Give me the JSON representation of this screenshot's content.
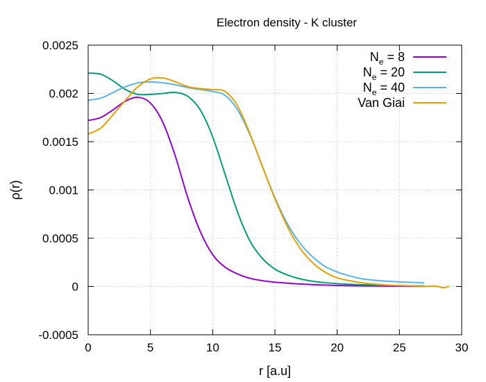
{
  "chart_data": {
    "type": "line",
    "title": "Electron density - K cluster",
    "xlabel": "r [a.u]",
    "ylabel": "ρ(r)",
    "xlim": [
      0,
      30
    ],
    "ylim": [
      -0.0005,
      0.0025
    ],
    "grid": true,
    "legend_position": "top-right",
    "x_ticks": [
      0,
      5,
      10,
      15,
      20,
      25,
      30
    ],
    "x_tick_labels": [
      "0",
      "5",
      "10",
      "15",
      "20",
      "25",
      "30"
    ],
    "y_ticks": [
      -0.0005,
      0,
      0.0005,
      0.001,
      0.0015,
      0.002,
      0.0025
    ],
    "y_tick_labels": [
      "-0.0005",
      "0",
      "0.0005",
      "0.001",
      "0.0015",
      "0.002",
      "0.0025"
    ],
    "series": [
      {
        "name": "N_e = 8",
        "legend": {
          "base": "N",
          "sub": "e",
          "rest": " = 8"
        },
        "color": "#9400d3",
        "x": [
          0,
          1,
          2,
          3,
          4,
          5,
          6,
          7,
          8,
          9,
          10,
          11,
          12,
          13,
          14,
          15,
          16,
          17,
          18,
          19,
          20,
          21,
          22,
          23,
          24,
          25,
          26,
          27
        ],
        "y": [
          0.00172,
          0.00175,
          0.00183,
          0.00192,
          0.00196,
          0.0019,
          0.0017,
          0.00135,
          0.00092,
          0.00057,
          0.00033,
          0.0002,
          0.00013,
          8.5e-05,
          6e-05,
          4.5e-05,
          3.5e-05,
          2.6e-05,
          2e-05,
          1.5e-05,
          1.1e-05,
          8e-06,
          6e-06,
          5e-06,
          4e-06,
          3e-06,
          2e-06,
          2e-06
        ]
      },
      {
        "name": "N_e = 20",
        "legend": {
          "base": "N",
          "sub": "e",
          "rest": " = 20"
        },
        "color": "#009e73",
        "x": [
          0,
          1,
          2,
          3,
          4,
          5,
          6,
          7,
          8,
          9,
          10,
          11,
          12,
          13,
          14,
          15,
          16,
          17,
          18,
          19,
          20,
          21,
          22,
          23,
          24,
          25,
          26,
          27
        ],
        "y": [
          0.00221,
          0.0022,
          0.00213,
          0.00204,
          0.00199,
          0.00199,
          0.002,
          0.00201,
          0.00197,
          0.00183,
          0.00155,
          0.00116,
          0.00077,
          0.00047,
          0.00029,
          0.00018,
          0.00012,
          8e-05,
          5.5e-05,
          4e-05,
          3e-05,
          2.3e-05,
          1.8e-05,
          1.4e-05,
          1.1e-05,
          9e-06,
          7e-06,
          6e-06
        ]
      },
      {
        "name": "N_e = 40",
        "legend": {
          "base": "N",
          "sub": "e",
          "rest": " = 40"
        },
        "color": "#56b4e9",
        "x": [
          0,
          1,
          2,
          3,
          4,
          5,
          6,
          7,
          8,
          9,
          10,
          11,
          12,
          13,
          14,
          15,
          16,
          17,
          18,
          19,
          20,
          21,
          22,
          23,
          24,
          25,
          26,
          27
        ],
        "y": [
          0.00193,
          0.00195,
          0.00201,
          0.00207,
          0.00211,
          0.00212,
          0.00211,
          0.00209,
          0.00206,
          0.00204,
          0.00202,
          0.00198,
          0.00183,
          0.00157,
          0.00124,
          0.00092,
          0.00065,
          0.00045,
          0.00031,
          0.00021,
          0.00015,
          0.00011,
          8e-05,
          6.5e-05,
          5.5e-05,
          4.8e-05,
          4.2e-05,
          3.8e-05
        ]
      },
      {
        "name": "Van Giai",
        "legend": {
          "base": "Van Giai",
          "sub": "",
          "rest": ""
        },
        "color": "#e69f00",
        "x": [
          0,
          1,
          2,
          3,
          4,
          5,
          6,
          7,
          8,
          9,
          10,
          11,
          12,
          13,
          14,
          15,
          16,
          17,
          18,
          19,
          20,
          21,
          22,
          23,
          24,
          25,
          26,
          27,
          28,
          28.5,
          29
        ],
        "y": [
          0.00158,
          0.00164,
          0.00178,
          0.00193,
          0.00207,
          0.00215,
          0.00216,
          0.00212,
          0.00207,
          0.00205,
          0.00204,
          0.00202,
          0.00187,
          0.00158,
          0.00124,
          0.00091,
          0.00062,
          0.0004,
          0.00025,
          0.00015,
          9e-05,
          6e-05,
          3.8e-05,
          2.5e-05,
          1.5e-05,
          1e-05,
          6e-06,
          3e-06,
          2e-06,
          -1.2e-05,
          2e-06
        ]
      }
    ]
  }
}
